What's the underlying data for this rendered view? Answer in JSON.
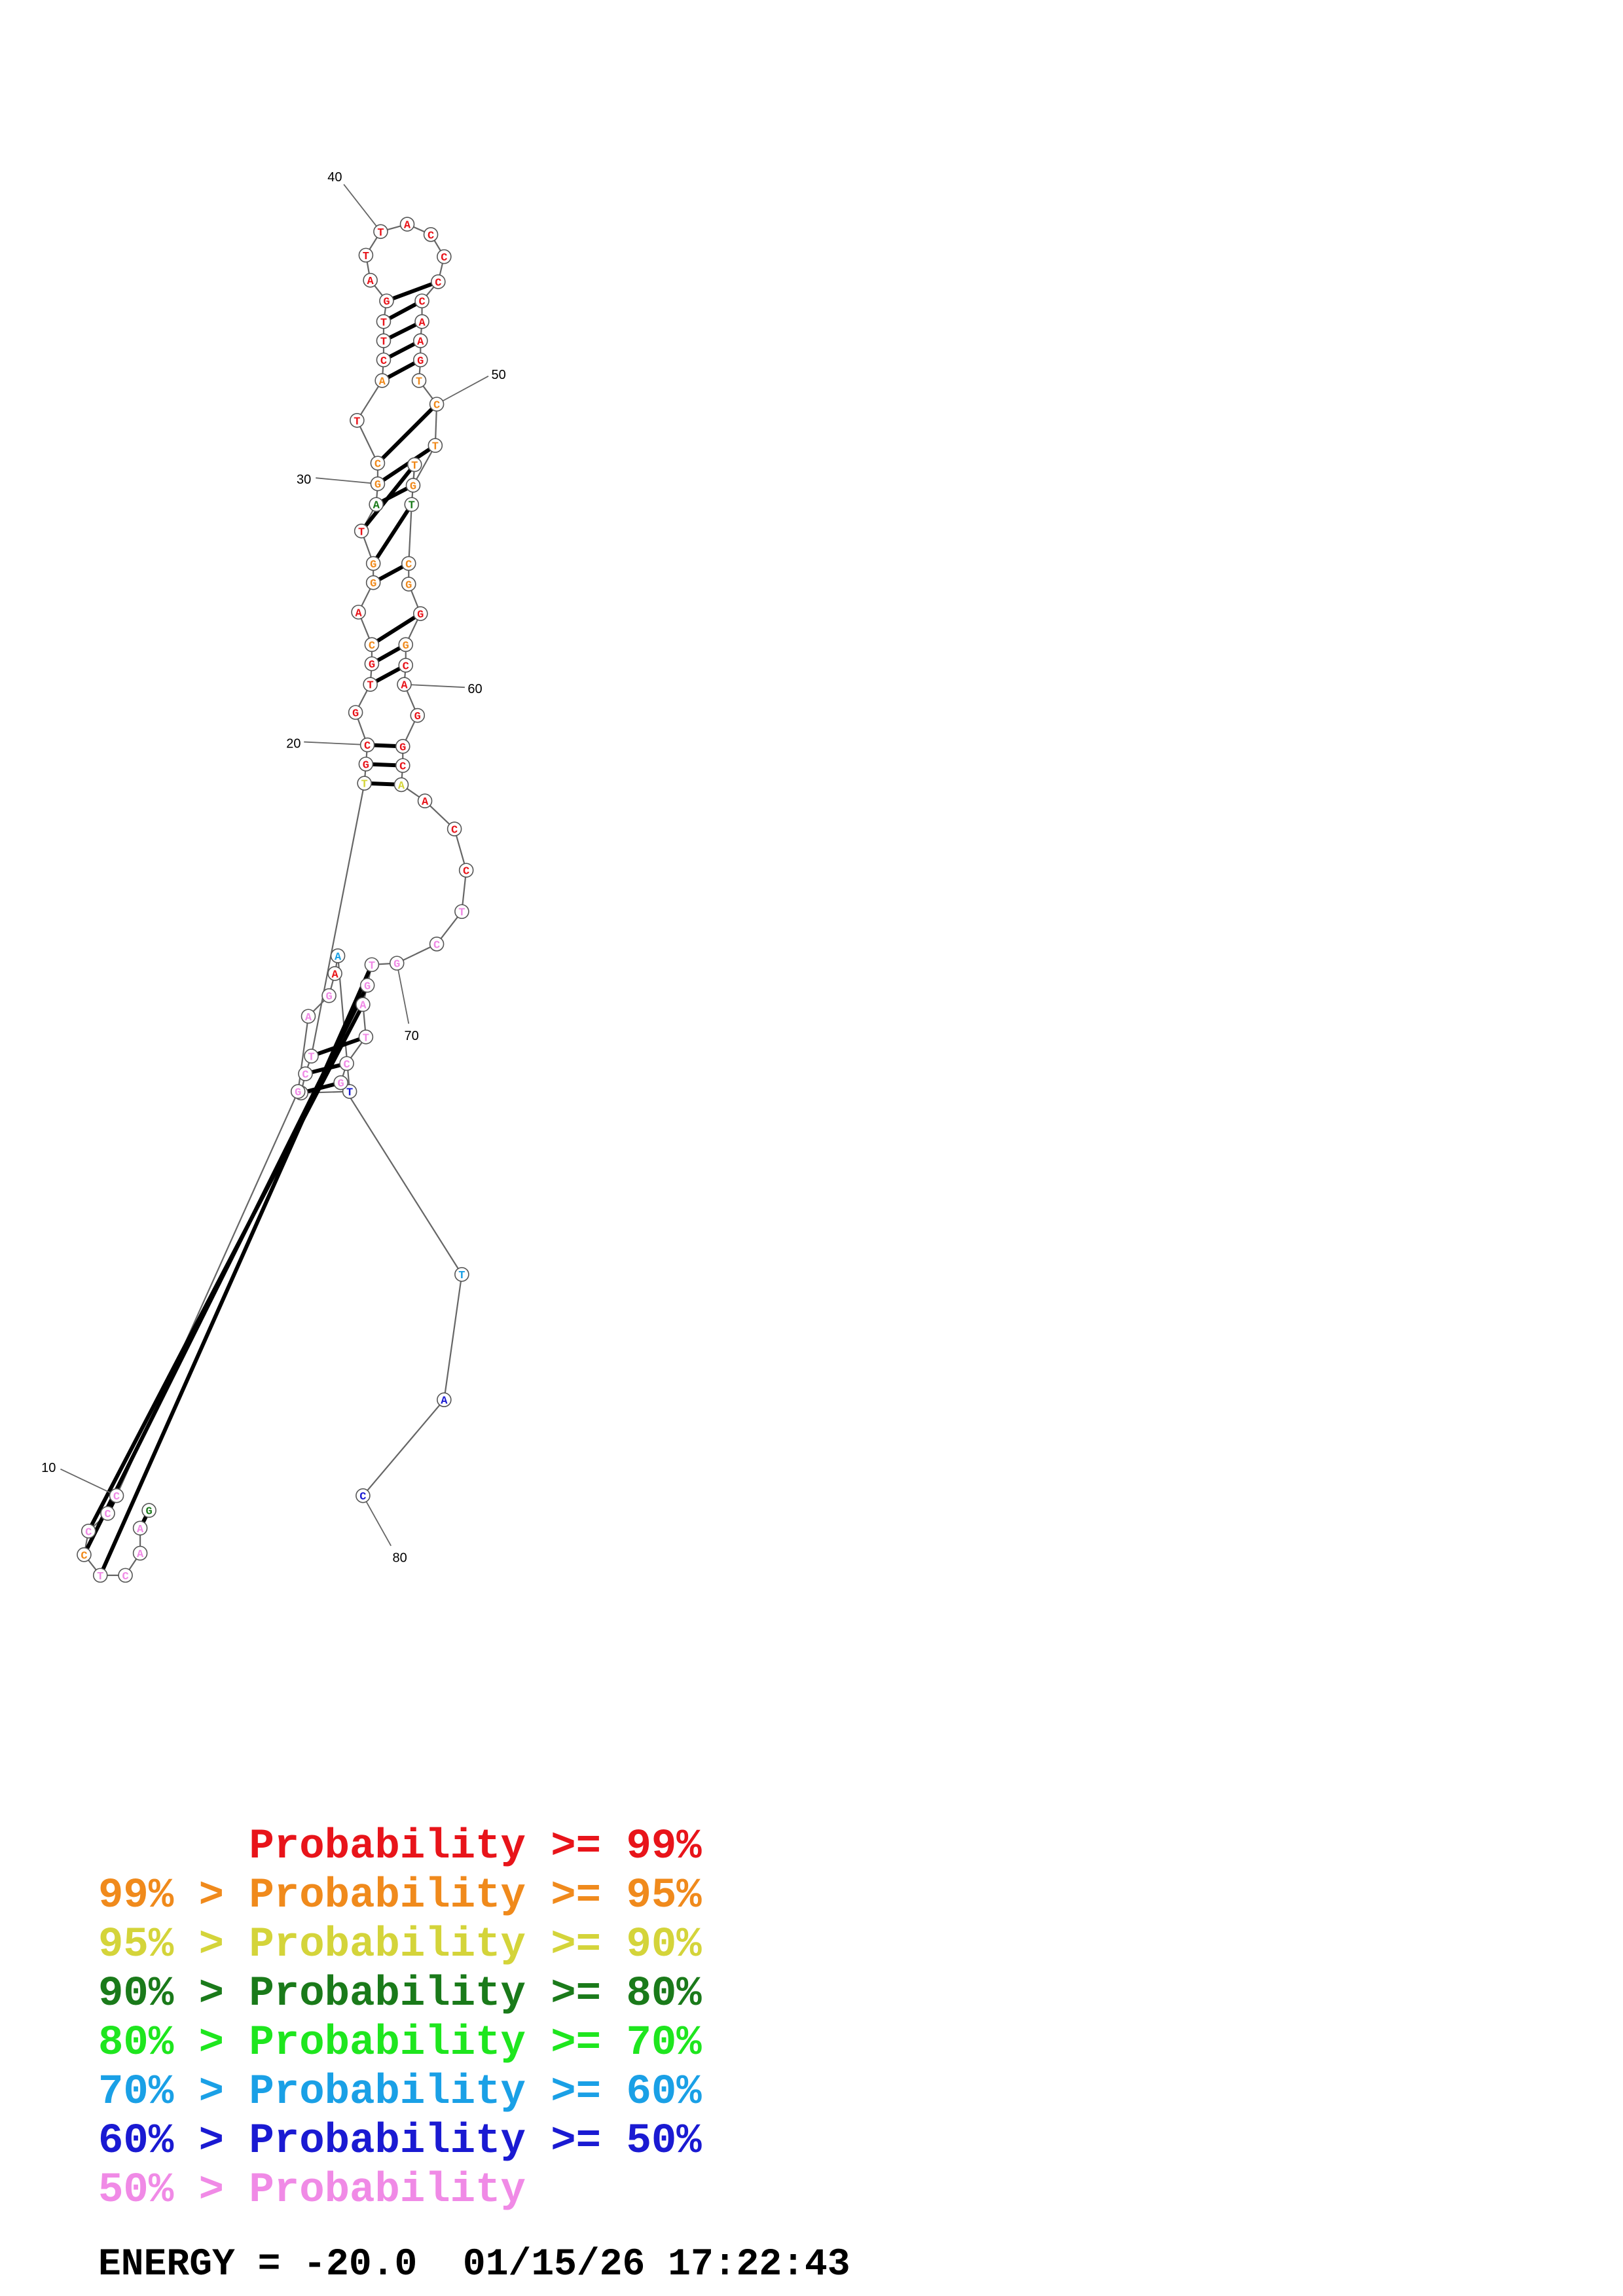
{
  "colors": {
    "p99": "#e8141a",
    "p95": "#f08a1c",
    "p90": "#d4d43a",
    "p80": "#1a7a1a",
    "p70": "#1ee61e",
    "p60": "#1aa0e6",
    "p50": "#1a1ad2",
    "p0": "#f08ae6"
  },
  "legend": [
    {
      "prefix": "",
      "text": "Probability >= 99%",
      "color_key": "p99"
    },
    {
      "prefix": "99% > ",
      "text": "Probability >= 95%",
      "color_key": "p95"
    },
    {
      "prefix": "95% > ",
      "text": "Probability >= 90%",
      "color_key": "p90"
    },
    {
      "prefix": "90% > ",
      "text": "Probability >= 80%",
      "color_key": "p80"
    },
    {
      "prefix": "80% > ",
      "text": "Probability >= 70%",
      "color_key": "p70"
    },
    {
      "prefix": "70% > ",
      "text": "Probability >= 60%",
      "color_key": "p60"
    },
    {
      "prefix": "60% > ",
      "text": "Probability >= 50%",
      "color_key": "p50"
    },
    {
      "prefix": "50% > ",
      "text": "Probability",
      "color_key": "p0"
    }
  ],
  "energy": {
    "label": "ENERGY = -20.0",
    "timestamp": "01/15/26 17:22:43"
  },
  "position_labels": [
    "10",
    "20",
    "30",
    "40",
    "50",
    "60",
    "70",
    "80"
  ],
  "chart_data": {
    "type": "rna-secondary-structure",
    "sequence_length": 80,
    "bases": [
      {
        "i": 1,
        "b": "C",
        "p": "p0"
      },
      {
        "i": 2,
        "b": "C",
        "p": "p0"
      },
      {
        "i": 3,
        "b": "T",
        "p": "p0"
      },
      {
        "i": 4,
        "b": "A",
        "p": "p0"
      },
      {
        "i": 5,
        "b": "G",
        "p": "p0"
      },
      {
        "i": 6,
        "b": "A",
        "p": "p99"
      },
      {
        "i": 7,
        "b": "A",
        "p": "p60"
      },
      {
        "i": 8,
        "b": "T",
        "p": "p50"
      },
      {
        "i": 9,
        "b": "G",
        "p": "p0"
      },
      {
        "i": 10,
        "b": "C",
        "p": "p0"
      },
      {
        "i": 11,
        "b": "G",
        "p": "p80"
      },
      {
        "i": 12,
        "b": "C",
        "p": "p0"
      },
      {
        "i": 13,
        "b": "A",
        "p": "p0"
      },
      {
        "i": 14,
        "b": "C",
        "p": "p0"
      },
      {
        "i": 15,
        "b": "C",
        "p": "p95"
      },
      {
        "i": 16,
        "b": "T",
        "p": "p0"
      },
      {
        "i": 17,
        "b": "C",
        "p": "p0"
      },
      {
        "i": 18,
        "b": "A",
        "p": "p0"
      },
      {
        "i": 19,
        "b": "T",
        "p": "p90"
      },
      {
        "i": 20,
        "b": "G",
        "p": "p99"
      },
      {
        "i": 21,
        "b": "C",
        "p": "p99"
      },
      {
        "i": 22,
        "b": "G",
        "p": "p99"
      },
      {
        "i": 23,
        "b": "T",
        "p": "p99"
      },
      {
        "i": 24,
        "b": "G",
        "p": "p99"
      },
      {
        "i": 25,
        "b": "C",
        "p": "p95"
      },
      {
        "i": 26,
        "b": "A",
        "p": "p99"
      },
      {
        "i": 27,
        "b": "G",
        "p": "p95"
      },
      {
        "i": 28,
        "b": "G",
        "p": "p95"
      },
      {
        "i": 29,
        "b": "T",
        "p": "p99"
      },
      {
        "i": 30,
        "b": "A",
        "p": "p80"
      },
      {
        "i": 31,
        "b": "G",
        "p": "p95"
      },
      {
        "i": 32,
        "b": "C",
        "p": "p95"
      },
      {
        "i": 33,
        "b": "T",
        "p": "p99"
      },
      {
        "i": 34,
        "b": "A",
        "p": "p95"
      },
      {
        "i": 35,
        "b": "C",
        "p": "p99"
      },
      {
        "i": 36,
        "b": "T",
        "p": "p99"
      },
      {
        "i": 37,
        "b": "T",
        "p": "p99"
      },
      {
        "i": 38,
        "b": "G",
        "p": "p99"
      },
      {
        "i": 39,
        "b": "A",
        "p": "p99"
      },
      {
        "i": 40,
        "b": "T",
        "p": "p99"
      },
      {
        "i": 41,
        "b": "T",
        "p": "p99"
      },
      {
        "i": 42,
        "b": "A",
        "p": "p99"
      },
      {
        "i": 43,
        "b": "C",
        "p": "p99"
      },
      {
        "i": 44,
        "b": "C",
        "p": "p99"
      },
      {
        "i": 45,
        "b": "C",
        "p": "p99"
      },
      {
        "i": 46,
        "b": "C",
        "p": "p99"
      },
      {
        "i": 47,
        "b": "A",
        "p": "p99"
      },
      {
        "i": 48,
        "b": "A",
        "p": "p99"
      },
      {
        "i": 49,
        "b": "G",
        "p": "p99"
      },
      {
        "i": 50,
        "b": "T",
        "p": "p95"
      },
      {
        "i": 51,
        "b": "C",
        "p": "p95"
      },
      {
        "i": 52,
        "b": "T",
        "p": "p95"
      },
      {
        "i": 53,
        "b": "G",
        "p": "p95"
      },
      {
        "i": 54,
        "b": "T",
        "p": "p95"
      },
      {
        "i": 55,
        "b": "T",
        "p": "p80"
      },
      {
        "i": 56,
        "b": "C",
        "p": "p95"
      },
      {
        "i": 57,
        "b": "G",
        "p": "p95"
      },
      {
        "i": 58,
        "b": "G",
        "p": "p99"
      },
      {
        "i": 59,
        "b": "G",
        "p": "p95"
      },
      {
        "i": 60,
        "b": "C",
        "p": "p99"
      },
      {
        "i": 61,
        "b": "A",
        "p": "p99"
      },
      {
        "i": 62,
        "b": "G",
        "p": "p99"
      },
      {
        "i": 63,
        "b": "G",
        "p": "p99"
      },
      {
        "i": 64,
        "b": "C",
        "p": "p99"
      },
      {
        "i": 65,
        "b": "A",
        "p": "p90"
      },
      {
        "i": 66,
        "b": "A",
        "p": "p99"
      },
      {
        "i": 67,
        "b": "C",
        "p": "p99"
      },
      {
        "i": 68,
        "b": "C",
        "p": "p99"
      },
      {
        "i": 69,
        "b": "T",
        "p": "p0"
      },
      {
        "i": 70,
        "b": "C",
        "p": "p0"
      },
      {
        "i": 71,
        "b": "G",
        "p": "p0"
      },
      {
        "i": 72,
        "b": "T",
        "p": "p0"
      },
      {
        "i": 73,
        "b": "G",
        "p": "p0"
      },
      {
        "i": 74,
        "b": "A",
        "p": "p0"
      },
      {
        "i": 75,
        "b": "T",
        "p": "p0"
      },
      {
        "i": 76,
        "b": "C",
        "p": "p0"
      },
      {
        "i": 77,
        "b": "G",
        "p": "p0"
      },
      {
        "i": 78,
        "b": "T",
        "p": "p60"
      },
      {
        "i": 79,
        "b": "A",
        "p": "p50"
      },
      {
        "i": 80,
        "b": "C",
        "p": "p50"
      }
    ],
    "pairs": [
      [
        1,
        77
      ],
      [
        2,
        76
      ],
      [
        3,
        75
      ],
      [
        10,
        12
      ],
      [
        11,
        13
      ],
      [
        14,
        74
      ],
      [
        15,
        73
      ],
      [
        16,
        72
      ],
      [
        19,
        65
      ],
      [
        20,
        64
      ],
      [
        21,
        63
      ],
      [
        23,
        60
      ],
      [
        24,
        59
      ],
      [
        25,
        58
      ],
      [
        27,
        56
      ],
      [
        28,
        55
      ],
      [
        29,
        54
      ],
      [
        30,
        53
      ],
      [
        31,
        52
      ],
      [
        32,
        51
      ],
      [
        34,
        49
      ],
      [
        35,
        48
      ],
      [
        36,
        47
      ],
      [
        37,
        46
      ],
      [
        38,
        45
      ]
    ]
  }
}
